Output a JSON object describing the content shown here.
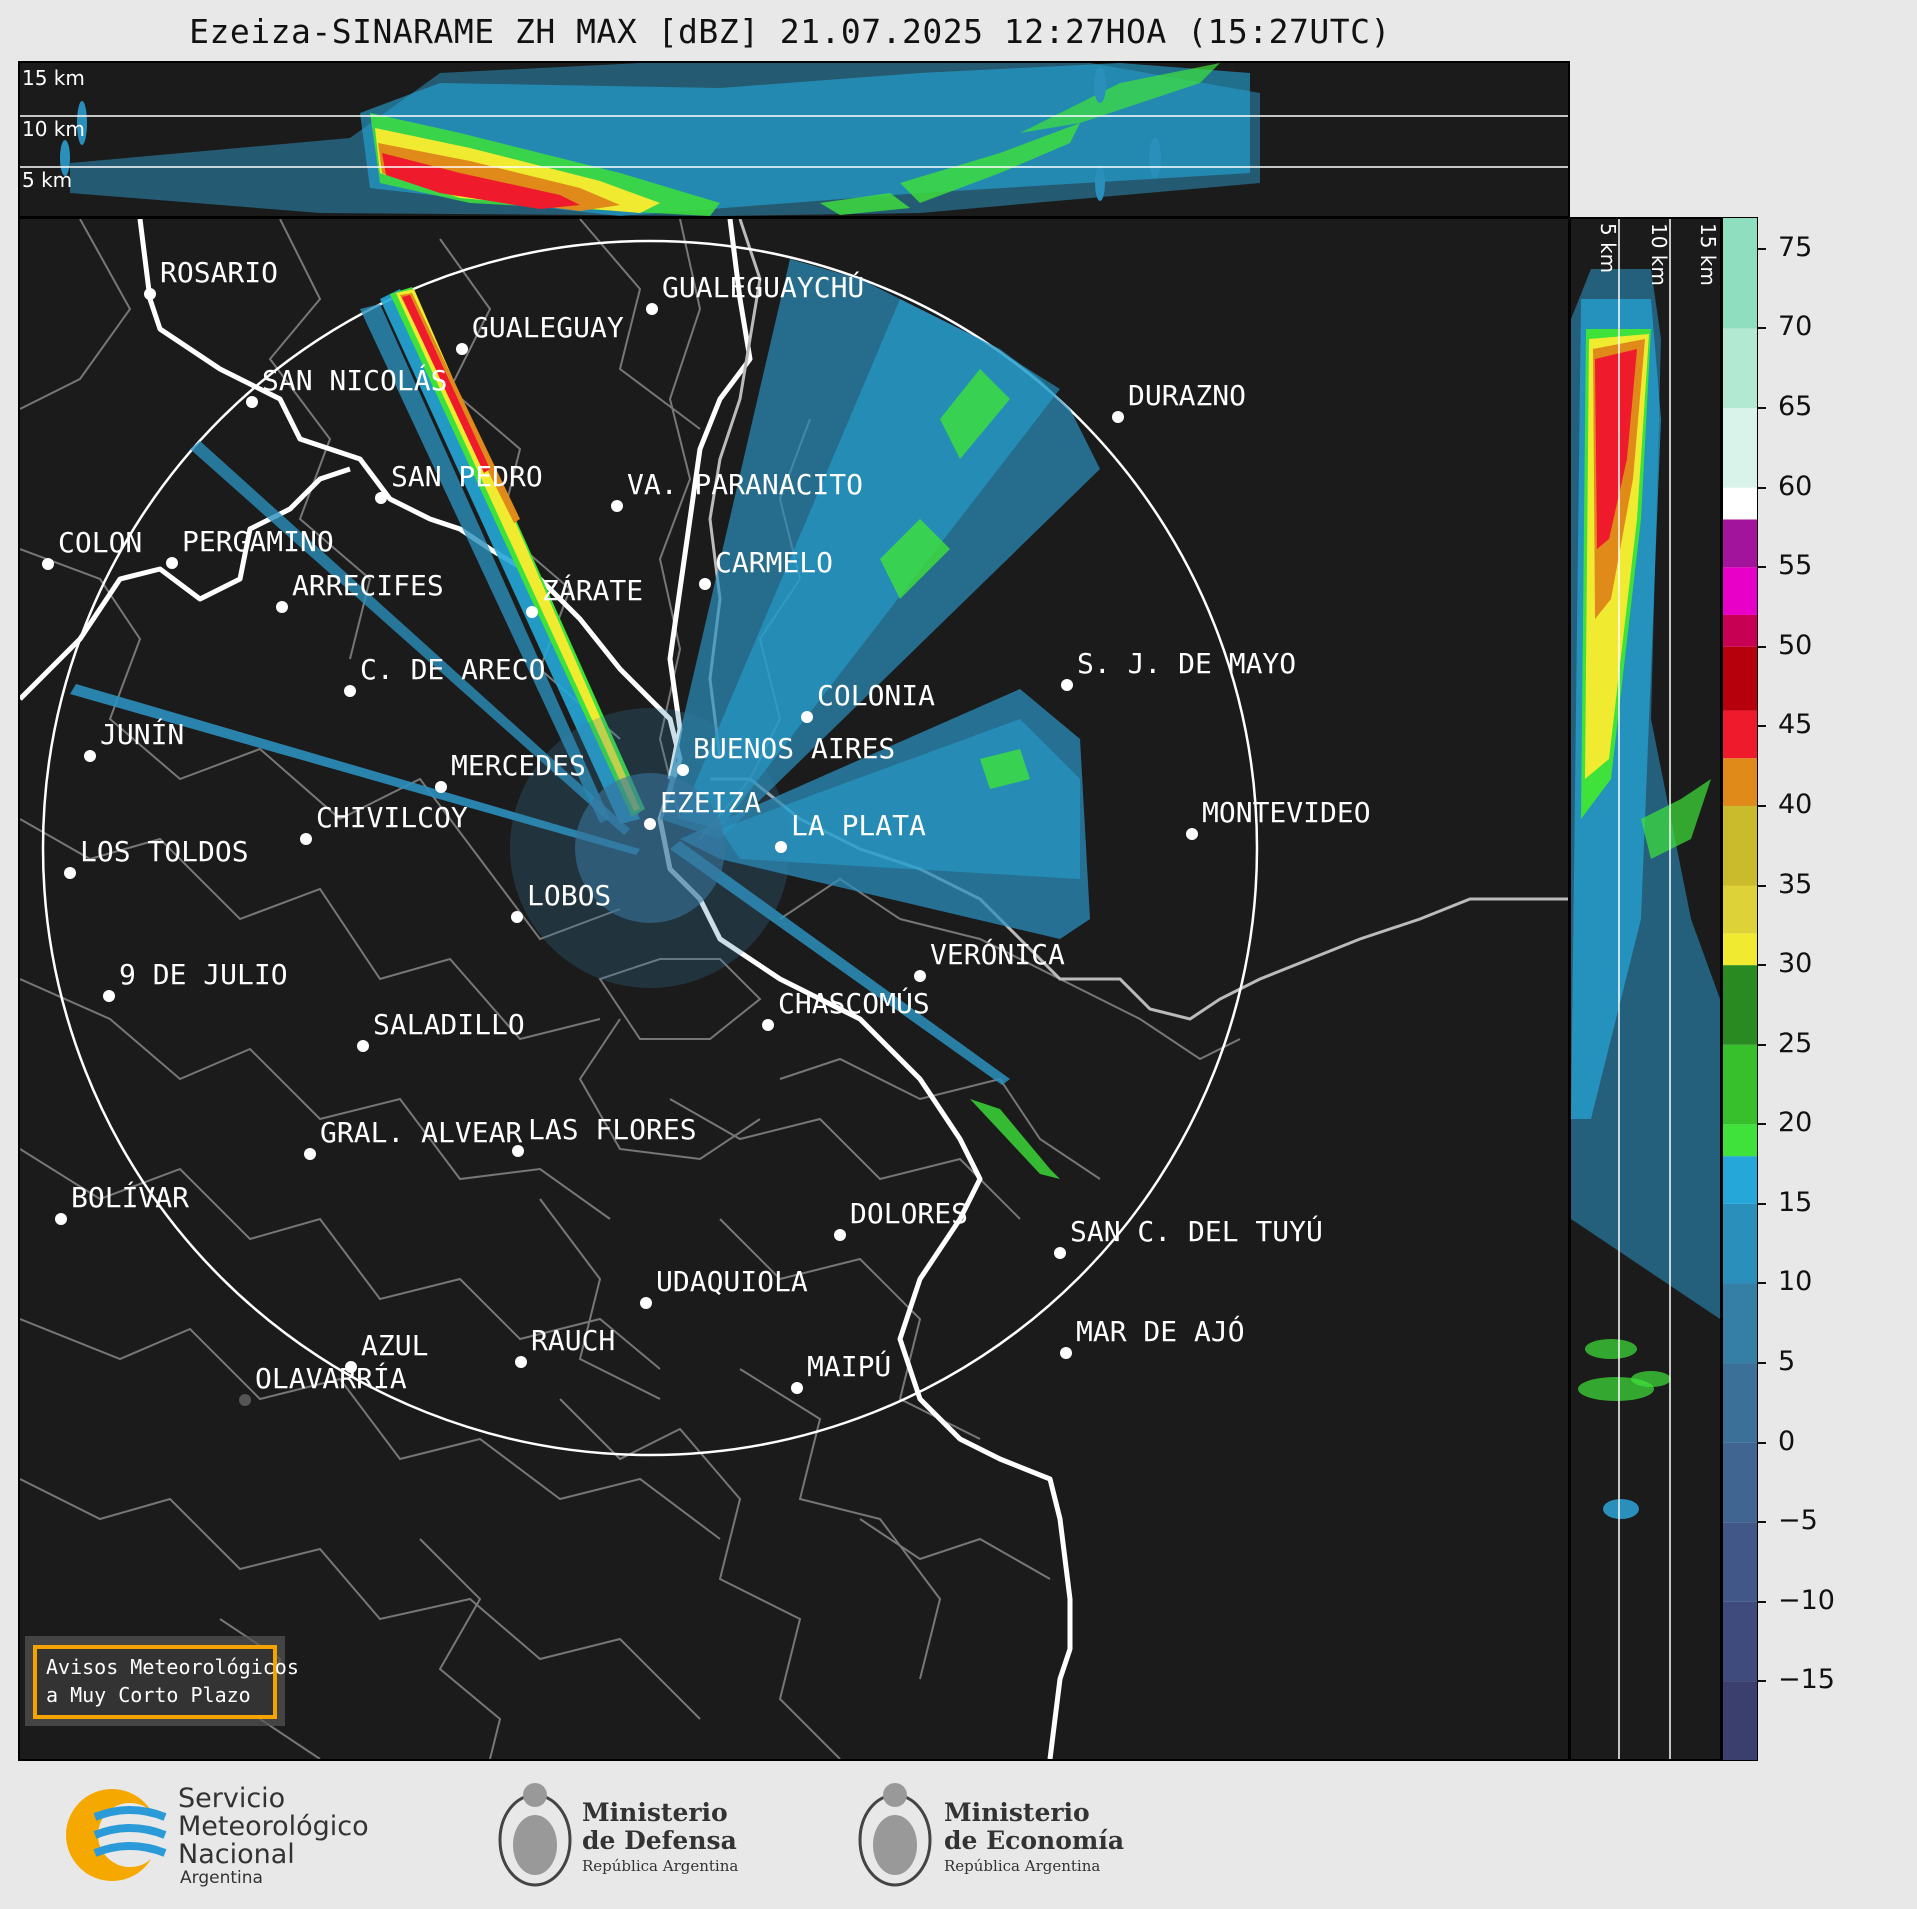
{
  "title": "Ezeiza-SINARAME ZH MAX [dBZ] 21.07.2025 12:27HOA (15:27UTC)",
  "top_panel": {
    "height_labels": [
      "15 km",
      "10 km",
      "5 km"
    ]
  },
  "side_panel": {
    "height_labels": [
      "5 km",
      "10 km",
      "15 km"
    ]
  },
  "cities": [
    "ROSARIO",
    "GUALEGUAYCHÚ",
    "GUALEGUAY",
    "SAN NICOLÁS",
    "DURAZNO",
    "SAN PEDRO",
    "VA. PARANACITO",
    "COLON",
    "PERGAMINO",
    "CARMELO",
    "ARRECIFES",
    "ZÁRATE",
    "C. DE ARECO",
    "S. J. DE MAYO",
    "COLONIA",
    "JUNÍN",
    "BUENOS AIRES",
    "MERCEDES",
    "EZEIZA",
    "MONTEVIDEO",
    "CHIVILCOY",
    "LA PLATA",
    "LOS TOLDOS",
    "LOBOS",
    "VERÓNICA",
    "9 DE JULIO",
    "CHASCOMÚS",
    "SALADILLO",
    "LAS FLORES",
    "GRAL. ALVEAR",
    "BOLÍVAR",
    "DOLORES",
    "SAN C. DEL TUYÚ",
    "UDAQUIOLA",
    "MAR DE AJÓ",
    "RAUCH",
    "AZUL",
    "OLAVARRÍA",
    "MAIPÚ"
  ],
  "colorbar": {
    "unit": "dBZ",
    "ticks": [
      "75",
      "70",
      "65",
      "60",
      "55",
      "50",
      "45",
      "40",
      "35",
      "30",
      "25",
      "20",
      "15",
      "10",
      "5",
      "0",
      "−5",
      "−10",
      "−15"
    ],
    "range": [
      -20,
      77
    ],
    "colors": [
      {
        "from": -20,
        "to": -15,
        "color": "#3b3f6e"
      },
      {
        "from": -15,
        "to": -10,
        "color": "#3f4b7c"
      },
      {
        "from": -10,
        "to": -5,
        "color": "#415787"
      },
      {
        "from": -5,
        "to": 0,
        "color": "#3f6590"
      },
      {
        "from": 0,
        "to": 5,
        "color": "#3b7199"
      },
      {
        "from": 5,
        "to": 10,
        "color": "#357fa6"
      },
      {
        "from": 10,
        "to": 15,
        "color": "#2b8fbc"
      },
      {
        "from": 15,
        "to": 18,
        "color": "#25a8d9"
      },
      {
        "from": 18,
        "to": 20,
        "color": "#3ee23a"
      },
      {
        "from": 20,
        "to": 25,
        "color": "#38bf2c"
      },
      {
        "from": 25,
        "to": 30,
        "color": "#2a8a22"
      },
      {
        "from": 30,
        "to": 32,
        "color": "#f0ea30"
      },
      {
        "from": 32,
        "to": 35,
        "color": "#ddd338"
      },
      {
        "from": 35,
        "to": 40,
        "color": "#c9bb2c"
      },
      {
        "from": 40,
        "to": 43,
        "color": "#e08a1a"
      },
      {
        "from": 43,
        "to": 46,
        "color": "#ef1a2c"
      },
      {
        "from": 46,
        "to": 50,
        "color": "#b6000c"
      },
      {
        "from": 50,
        "to": 52,
        "color": "#c80054"
      },
      {
        "from": 52,
        "to": 55,
        "color": "#e800c8"
      },
      {
        "from": 55,
        "to": 58,
        "color": "#a3149c"
      },
      {
        "from": 58,
        "to": 60,
        "color": "#ffffff"
      },
      {
        "from": 60,
        "to": 65,
        "color": "#d9f3ea"
      },
      {
        "from": 65,
        "to": 70,
        "color": "#b2e9d2"
      },
      {
        "from": 70,
        "to": 77,
        "color": "#8fdec0"
      }
    ]
  },
  "warning_box": {
    "line1": "Avisos Meteorológicos",
    "line2": "a Muy Corto Plazo",
    "color": "#f5a300"
  },
  "logos": {
    "smn": {
      "line1": "Servicio",
      "line2": "Meteorológico",
      "line3": "Nacional",
      "line4": "Argentina"
    },
    "defensa": {
      "line1": "Ministerio",
      "line2": "de Defensa",
      "line3": "República Argentina"
    },
    "economia": {
      "line1": "Ministerio",
      "line2": "de Economía",
      "line3": "República Argentina"
    }
  }
}
